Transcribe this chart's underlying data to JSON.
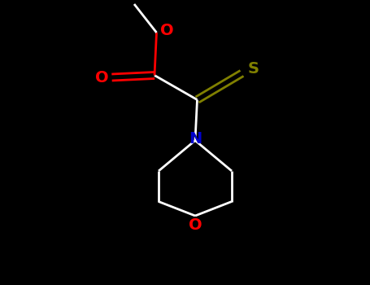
{
  "background_color": "#000000",
  "atom_colors": {
    "O": "#ff0000",
    "S": "#808000",
    "N": "#0000cd",
    "C": "#ffffff",
    "bond": "#ffffff"
  },
  "figsize": [
    4.55,
    3.5
  ],
  "dpi": 100,
  "xlim": [
    0,
    9.1
  ],
  "ylim": [
    0,
    7.0
  ]
}
